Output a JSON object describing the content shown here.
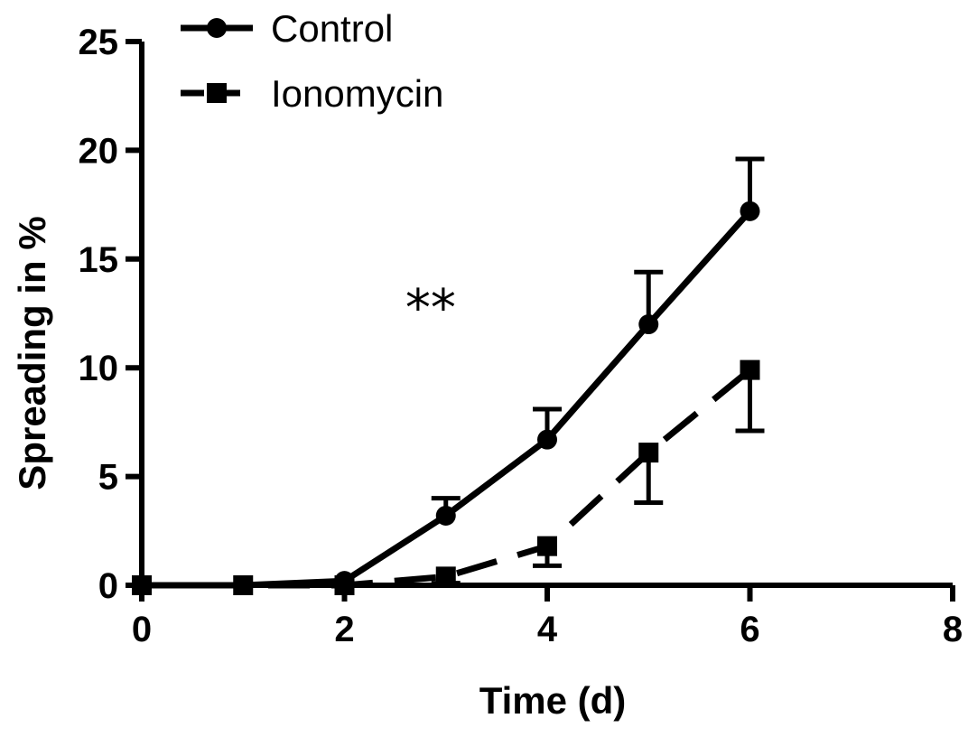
{
  "chart_data": {
    "type": "line",
    "title": "",
    "xlabel": "Time (d)",
    "ylabel": "Spreading in %",
    "xlim": [
      0,
      8
    ],
    "ylim": [
      0,
      25
    ],
    "xticks": [
      0,
      2,
      4,
      6,
      8
    ],
    "yticks": [
      0,
      5,
      10,
      15,
      20,
      25
    ],
    "grid": false,
    "legend_position": "top-left",
    "annotations": [
      {
        "text": "**",
        "x": 2.85,
        "y": 12.8
      }
    ],
    "series": [
      {
        "name": "Control",
        "marker": "circle",
        "line_style": "solid",
        "color": "#000000",
        "x": [
          0,
          1,
          2,
          3,
          4,
          5,
          6
        ],
        "y": [
          0,
          0,
          0.2,
          3.2,
          6.7,
          12.0,
          17.2
        ],
        "error": [
          0,
          0,
          0,
          0.8,
          1.4,
          2.4,
          2.4
        ]
      },
      {
        "name": "Ionomycin",
        "marker": "square",
        "line_style": "dashed",
        "color": "#000000",
        "x": [
          0,
          1,
          2,
          3,
          4,
          5,
          6
        ],
        "y": [
          0,
          0,
          0,
          0.4,
          1.8,
          6.1,
          9.9
        ],
        "error": [
          0,
          0,
          0,
          0.3,
          0.9,
          2.3,
          2.8
        ]
      }
    ]
  }
}
